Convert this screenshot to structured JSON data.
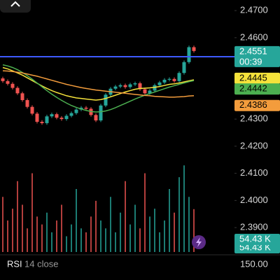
{
  "chart_data": {
    "type": "candlestick",
    "ylim": [
      2.381,
      2.4739
    ],
    "yticks": [
      {
        "value": 2.47,
        "label": "2.4700"
      },
      {
        "value": 2.46,
        "label": "2.4600"
      },
      {
        "value": 2.43,
        "label": "2.4300"
      },
      {
        "value": 2.42,
        "label": "2.4200"
      },
      {
        "value": 2.41,
        "label": "2.4100"
      },
      {
        "value": 2.4,
        "label": "2.4000"
      },
      {
        "value": 2.39,
        "label": "2.3900"
      }
    ],
    "categories": [
      null,
      null,
      null,
      null,
      null,
      null,
      null,
      null,
      null,
      null,
      null,
      null,
      null,
      null,
      null,
      null,
      null,
      null,
      null,
      null,
      null,
      null,
      null,
      null,
      null,
      null,
      null,
      null,
      null,
      null,
      null,
      null,
      null,
      null,
      null,
      null,
      null,
      null,
      null,
      null
    ],
    "open": [
      2.445,
      2.444,
      2.443,
      2.4415,
      2.4395,
      2.437,
      2.4345,
      2.432,
      2.429,
      2.4285,
      2.431,
      2.4318,
      2.4305,
      2.43,
      2.4312,
      2.4322,
      2.4335,
      2.4342,
      2.4338,
      2.4315,
      2.4295,
      2.435,
      2.439,
      2.4412,
      2.442,
      2.4425,
      2.4418,
      2.4428,
      2.4432,
      2.441,
      2.4395,
      2.4405,
      2.4425,
      2.4435,
      2.4445,
      2.4448,
      2.444,
      2.447,
      2.451,
      2.4565
    ],
    "high": [
      2.4456,
      2.4446,
      2.4436,
      2.4421,
      2.4401,
      2.4376,
      2.4351,
      2.4326,
      2.4296,
      2.4316,
      2.4324,
      2.4324,
      2.4311,
      2.4318,
      2.4328,
      2.4341,
      2.4348,
      2.4348,
      2.4344,
      2.4321,
      2.4356,
      2.4396,
      2.4418,
      2.4426,
      2.4431,
      2.4431,
      2.4434,
      2.4438,
      2.4438,
      2.4416,
      2.4411,
      2.4431,
      2.4441,
      2.4451,
      2.4454,
      2.4454,
      2.4476,
      2.4516,
      2.4571,
      2.4571
    ],
    "low": [
      2.4434,
      2.4424,
      2.4409,
      2.4389,
      2.4364,
      2.4339,
      2.4314,
      2.4284,
      2.4279,
      2.4279,
      2.4304,
      2.4299,
      2.4294,
      2.4294,
      2.4306,
      2.4316,
      2.4329,
      2.4332,
      2.4309,
      2.4289,
      2.4289,
      2.4344,
      2.4384,
      2.4406,
      2.4414,
      2.4412,
      2.4412,
      2.4422,
      2.4404,
      2.4389,
      2.4389,
      2.4399,
      2.4419,
      2.4429,
      2.4439,
      2.4434,
      2.4434,
      2.4464,
      2.4504,
      2.4545
    ],
    "close": [
      2.444,
      2.443,
      2.4415,
      2.4395,
      2.437,
      2.4345,
      2.432,
      2.429,
      2.4285,
      2.431,
      2.4318,
      2.4305,
      2.43,
      2.4312,
      2.4322,
      2.4335,
      2.4342,
      2.4338,
      2.4315,
      2.4295,
      2.435,
      2.439,
      2.4412,
      2.442,
      2.4425,
      2.4418,
      2.4428,
      2.4432,
      2.441,
      2.4395,
      2.4405,
      2.4425,
      2.4435,
      2.4445,
      2.4448,
      2.444,
      2.447,
      2.451,
      2.4565,
      2.4551
    ],
    "up_color": "#26a69a",
    "down_color": "#ef5350",
    "countdown": "00:39",
    "level": {
      "value": 2.453,
      "color": "#3d5afe"
    },
    "series": [
      {
        "color": "#f5e23b",
        "values": [
          2.449,
          2.4485,
          2.4478,
          2.447,
          2.4462,
          2.4452,
          2.4442,
          2.4432,
          2.4422,
          2.4413,
          2.4405,
          2.4398,
          2.4392,
          2.4386,
          2.4382,
          2.4378,
          2.4376,
          2.4374,
          2.4372,
          2.437,
          2.4372,
          2.4376,
          2.4382,
          2.4388,
          2.4394,
          2.44,
          2.4405,
          2.441,
          2.4413,
          2.4414,
          2.4415,
          2.4417,
          2.442,
          2.4424,
          2.4428,
          2.443,
          2.4433,
          2.4437,
          2.4441,
          2.4445
        ]
      },
      {
        "color": "#4caf50",
        "values": [
          2.45,
          2.4496,
          2.449,
          2.4482,
          2.4472,
          2.446,
          2.4447,
          2.4433,
          2.4419,
          2.4405,
          2.4392,
          2.438,
          2.4369,
          2.4359,
          2.435,
          2.4343,
          2.4337,
          2.4332,
          2.4328,
          2.4326,
          2.4327,
          2.433,
          2.4335,
          2.4342,
          2.435,
          2.4358,
          2.4366,
          2.4374,
          2.4381,
          2.4388,
          2.4394,
          2.44,
          2.4406,
          2.4412,
          2.4418,
          2.4423,
          2.4428,
          2.4433,
          2.4438,
          2.4442
        ]
      },
      {
        "color": "#f39c3c",
        "values": [
          2.4478,
          2.4477,
          2.4475,
          2.4473,
          2.447,
          2.4466,
          2.4462,
          2.4458,
          2.4453,
          2.4448,
          2.4443,
          2.4438,
          2.4433,
          2.4428,
          2.4424,
          2.442,
          2.4416,
          2.4413,
          2.441,
          2.4407,
          2.4405,
          2.4403,
          2.4401,
          2.4399,
          2.4397,
          2.4395,
          2.4393,
          2.4391,
          2.4389,
          2.4387,
          2.4386,
          2.4384,
          2.4383,
          2.4382,
          2.4381,
          2.4381,
          2.4382,
          2.4383,
          2.4385,
          2.4386
        ]
      }
    ],
    "volume": [
      70,
      40,
      55,
      90,
      60,
      30,
      100,
      45,
      35,
      50,
      25,
      40,
      60,
      20,
      35,
      80,
      30,
      25,
      45,
      65,
      40,
      30,
      70,
      25,
      50,
      90,
      35,
      60,
      30,
      100,
      45,
      55,
      25,
      40,
      80,
      50,
      95,
      110,
      70,
      54.43
    ],
    "volume_labels": {
      "39": "54.43 K"
    },
    "volume_lim": [
      0,
      120
    ],
    "indicator": {
      "name": "RSI",
      "params": "14 close",
      "value": {
        "value": 150,
        "label": "150.00"
      }
    }
  }
}
